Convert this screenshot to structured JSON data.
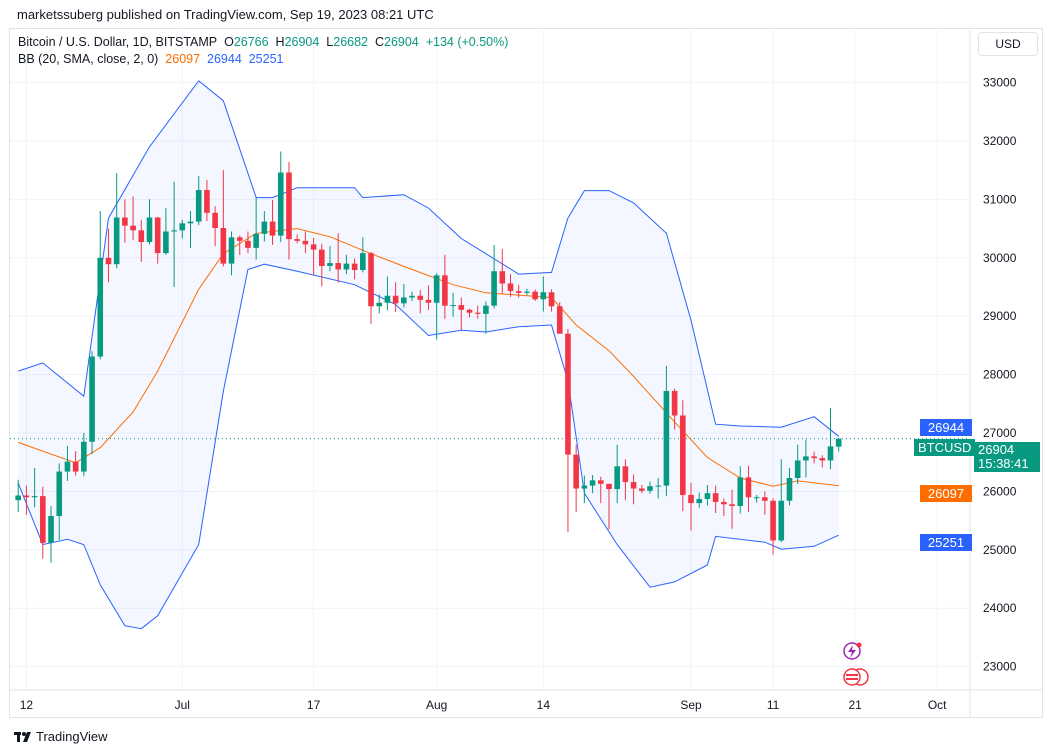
{
  "header": {
    "published": "marketssuberg published on TradingView.com, Sep 19, 2023 08:21 UTC"
  },
  "legend": {
    "symbol": "Bitcoin / U.S. Dollar, 1D, BITSTAMP",
    "o_label": "O",
    "o": "26766",
    "h_label": "H",
    "h": "26904",
    "l_label": "L",
    "l": "26682",
    "c_label": "C",
    "c": "26904",
    "change": "+134 (+0.50%)",
    "bb_label": "BB (20, SMA, close, 2, 0)",
    "bb_basis": "26097",
    "bb_upper": "26944",
    "bb_lower": "25251"
  },
  "currency_button": "USD",
  "price_tags": {
    "symbol": "BTCUSD",
    "last": "26904",
    "countdown": "15:38:41",
    "upper": "26944",
    "basis": "26097",
    "lower": "25251"
  },
  "footer": {
    "brand": "TradingView"
  },
  "colors": {
    "up": "#089981",
    "down": "#f23645",
    "bands": "#2962ff",
    "basis": "#ff6d00",
    "band_fill": "#2962ff0d",
    "grid": "#f0f3fa"
  },
  "chart_data": {
    "type": "candlestick",
    "ylim": [
      22600,
      33900
    ],
    "xlim": [
      "2023-06-10",
      "2023-10-05"
    ],
    "yticks": [
      23000,
      24000,
      25000,
      26000,
      27000,
      28000,
      29000,
      30000,
      31000,
      32000,
      33000
    ],
    "xticks": [
      {
        "date": "2023-06-12",
        "label": "12"
      },
      {
        "date": "2023-07-01",
        "label": "Jul"
      },
      {
        "date": "2023-07-17",
        "label": "17"
      },
      {
        "date": "2023-08-01",
        "label": "Aug"
      },
      {
        "date": "2023-08-14",
        "label": "14"
      },
      {
        "date": "2023-09-01",
        "label": "Sep"
      },
      {
        "date": "2023-09-11",
        "label": "11"
      },
      {
        "date": "2023-09-21",
        "label": "21"
      },
      {
        "date": "2023-10-01",
        "label": "Oct"
      }
    ],
    "grid": true,
    "last_price": 26904,
    "candles_start": "2023-06-11",
    "candles": [
      [
        25850,
        26200,
        25650,
        25930
      ],
      [
        25930,
        26100,
        25600,
        25900
      ],
      [
        25900,
        26400,
        25730,
        25920
      ],
      [
        25920,
        26080,
        24850,
        25120
      ],
      [
        25120,
        25750,
        24780,
        25580
      ],
      [
        25580,
        26480,
        25170,
        26340
      ],
      [
        26340,
        26780,
        26180,
        26510
      ],
      [
        26510,
        26690,
        26270,
        26340
      ],
      [
        26340,
        27000,
        26260,
        26850
      ],
      [
        26850,
        28400,
        26640,
        28310
      ],
      [
        28310,
        30800,
        28260,
        30000
      ],
      [
        30000,
        30500,
        29580,
        29890
      ],
      [
        29890,
        31450,
        29820,
        30690
      ],
      [
        30690,
        31000,
        30260,
        30550
      ],
      [
        30550,
        31050,
        30300,
        30470
      ],
      [
        30470,
        30650,
        29930,
        30270
      ],
      [
        30270,
        31000,
        30230,
        30690
      ],
      [
        30690,
        30700,
        29900,
        30080
      ],
      [
        30080,
        30850,
        30050,
        30450
      ],
      [
        30450,
        31300,
        29500,
        30470
      ],
      [
        30470,
        30650,
        30330,
        30590
      ],
      [
        30590,
        30800,
        30170,
        30620
      ],
      [
        30620,
        31400,
        30560,
        31160
      ],
      [
        31160,
        31330,
        30630,
        30770
      ],
      [
        30770,
        30880,
        30200,
        30510
      ],
      [
        30510,
        31500,
        29850,
        29900
      ],
      [
        29900,
        30450,
        29700,
        30350
      ],
      [
        30350,
        30380,
        30050,
        30290
      ],
      [
        30290,
        30450,
        30080,
        30170
      ],
      [
        30170,
        31050,
        29970,
        30410
      ],
      [
        30410,
        30800,
        30280,
        30620
      ],
      [
        30620,
        30990,
        30220,
        30380
      ],
      [
        30380,
        31820,
        30270,
        31460
      ],
      [
        31460,
        31640,
        29970,
        30320
      ],
      [
        30320,
        30400,
        30250,
        30290
      ],
      [
        30290,
        30450,
        30080,
        30230
      ],
      [
        30230,
        30340,
        29700,
        30140
      ],
      [
        30140,
        30240,
        29510,
        29860
      ],
      [
        29860,
        30200,
        29770,
        29910
      ],
      [
        29910,
        30420,
        29570,
        29800
      ],
      [
        29800,
        30050,
        29720,
        29900
      ],
      [
        29900,
        29990,
        29630,
        29790
      ],
      [
        29790,
        30350,
        29750,
        30080
      ],
      [
        30080,
        30100,
        28870,
        29170
      ],
      [
        29170,
        29370,
        29050,
        29230
      ],
      [
        29230,
        29680,
        29100,
        29350
      ],
      [
        29350,
        29580,
        29070,
        29220
      ],
      [
        29220,
        29550,
        29150,
        29320
      ],
      [
        29320,
        29420,
        29260,
        29350
      ],
      [
        29350,
        29450,
        29050,
        29280
      ],
      [
        29280,
        29530,
        29110,
        29230
      ],
      [
        29230,
        29740,
        28600,
        29700
      ],
      [
        29700,
        30050,
        28950,
        29180
      ],
      [
        29180,
        29400,
        28990,
        29190
      ],
      [
        29190,
        29320,
        28760,
        29110
      ],
      [
        29110,
        29130,
        28980,
        29060
      ],
      [
        29060,
        29180,
        28960,
        29040
      ],
      [
        29040,
        29250,
        28700,
        29180
      ],
      [
        29180,
        30220,
        29130,
        29770
      ],
      [
        29770,
        30150,
        29380,
        29560
      ],
      [
        29560,
        29720,
        29330,
        29430
      ],
      [
        29430,
        29540,
        29320,
        29400
      ],
      [
        29400,
        29470,
        29360,
        29420
      ],
      [
        29420,
        29460,
        29260,
        29290
      ],
      [
        29290,
        29680,
        29080,
        29410
      ],
      [
        29410,
        29460,
        29080,
        29170
      ],
      [
        29170,
        29240,
        28700,
        28700
      ],
      [
        28700,
        28780,
        25300,
        26630
      ],
      [
        26630,
        26800,
        25650,
        26050
      ],
      [
        26050,
        26270,
        25800,
        26100
      ],
      [
        26100,
        26280,
        25970,
        26190
      ],
      [
        26190,
        26250,
        25800,
        26130
      ],
      [
        26130,
        26130,
        25350,
        26040
      ],
      [
        26040,
        26800,
        25800,
        26430
      ],
      [
        26430,
        26550,
        25850,
        26160
      ],
      [
        26160,
        26290,
        25780,
        26050
      ],
      [
        26050,
        26110,
        25970,
        26010
      ],
      [
        26010,
        26170,
        25960,
        26090
      ],
      [
        26090,
        26230,
        25880,
        26100
      ],
      [
        26100,
        28150,
        25920,
        27720
      ],
      [
        27720,
        27760,
        27060,
        27300
      ],
      [
        27300,
        27560,
        25660,
        25940
      ],
      [
        25940,
        26150,
        25330,
        25800
      ],
      [
        25800,
        25980,
        25720,
        25870
      ],
      [
        25870,
        26110,
        25760,
        25970
      ],
      [
        25970,
        26100,
        25630,
        25820
      ],
      [
        25820,
        25880,
        25580,
        25780
      ],
      [
        25780,
        26030,
        25360,
        25750
      ],
      [
        25750,
        26430,
        25620,
        26240
      ],
      [
        26240,
        26440,
        25650,
        25900
      ],
      [
        25900,
        25940,
        25810,
        25900
      ],
      [
        25900,
        26000,
        25600,
        25840
      ],
      [
        25840,
        25880,
        24920,
        25160
      ],
      [
        25160,
        26550,
        25130,
        25840
      ],
      [
        25840,
        26400,
        25760,
        26230
      ],
      [
        26230,
        26800,
        26130,
        26530
      ],
      [
        26530,
        26890,
        26240,
        26600
      ],
      [
        26600,
        26680,
        26480,
        26570
      ],
      [
        26570,
        26620,
        26410,
        26530
      ],
      [
        26530,
        27430,
        26380,
        26770
      ],
      [
        26766,
        26904,
        26682,
        26904
      ]
    ],
    "bb_upper": [
      [
        "2023-06-11",
        28060
      ],
      [
        "2023-06-14",
        28200
      ],
      [
        "2023-06-19",
        27630
      ],
      [
        "2023-06-22",
        30680
      ],
      [
        "2023-06-27",
        31900
      ],
      [
        "2023-07-03",
        33030
      ],
      [
        "2023-07-06",
        32690
      ],
      [
        "2023-07-10",
        31030
      ],
      [
        "2023-07-12",
        31030
      ],
      [
        "2023-07-15",
        31200
      ],
      [
        "2023-07-22",
        31200
      ],
      [
        "2023-07-23",
        31030
      ],
      [
        "2023-07-28",
        31080
      ],
      [
        "2023-07-31",
        30850
      ],
      [
        "2023-08-04",
        30330
      ],
      [
        "2023-08-07",
        30070
      ],
      [
        "2023-08-11",
        29720
      ],
      [
        "2023-08-15",
        29750
      ],
      [
        "2023-08-17",
        30680
      ],
      [
        "2023-08-19",
        31150
      ],
      [
        "2023-08-22",
        31150
      ],
      [
        "2023-08-25",
        30940
      ],
      [
        "2023-08-29",
        30420
      ],
      [
        "2023-09-01",
        28930
      ],
      [
        "2023-09-04",
        27150
      ],
      [
        "2023-09-07",
        27120
      ],
      [
        "2023-09-12",
        27100
      ],
      [
        "2023-09-16",
        27280
      ],
      [
        "2023-09-19",
        26944
      ]
    ],
    "bb_basis": [
      [
        "2023-06-11",
        26840
      ],
      [
        "2023-06-18",
        26490
      ],
      [
        "2023-06-21",
        26750
      ],
      [
        "2023-06-25",
        27360
      ],
      [
        "2023-06-28",
        28060
      ],
      [
        "2023-07-03",
        29460
      ],
      [
        "2023-07-06",
        30070
      ],
      [
        "2023-07-10",
        30420
      ],
      [
        "2023-07-15",
        30500
      ],
      [
        "2023-07-19",
        30360
      ],
      [
        "2023-07-24",
        30070
      ],
      [
        "2023-07-29",
        29800
      ],
      [
        "2023-08-03",
        29540
      ],
      [
        "2023-08-07",
        29400
      ],
      [
        "2023-08-15",
        29320
      ],
      [
        "2023-08-18",
        28850
      ],
      [
        "2023-08-22",
        28410
      ],
      [
        "2023-08-25",
        27970
      ],
      [
        "2023-08-30",
        27190
      ],
      [
        "2023-09-03",
        26580
      ],
      [
        "2023-09-07",
        26230
      ],
      [
        "2023-09-11",
        26090
      ],
      [
        "2023-09-14",
        26180
      ],
      [
        "2023-09-19",
        26097
      ]
    ],
    "bb_lower": [
      [
        "2023-06-11",
        26140
      ],
      [
        "2023-06-14",
        25090
      ],
      [
        "2023-06-17",
        25180
      ],
      [
        "2023-06-19",
        25090
      ],
      [
        "2023-06-21",
        24400
      ],
      [
        "2023-06-24",
        23700
      ],
      [
        "2023-06-26",
        23650
      ],
      [
        "2023-06-28",
        23870
      ],
      [
        "2023-07-03",
        25090
      ],
      [
        "2023-07-06",
        27710
      ],
      [
        "2023-07-09",
        29800
      ],
      [
        "2023-07-11",
        29890
      ],
      [
        "2023-07-15",
        29770
      ],
      [
        "2023-07-22",
        29540
      ],
      [
        "2023-07-27",
        29200
      ],
      [
        "2023-07-31",
        28670
      ],
      [
        "2023-08-04",
        28760
      ],
      [
        "2023-08-07",
        28730
      ],
      [
        "2023-08-11",
        28820
      ],
      [
        "2023-08-15",
        28850
      ],
      [
        "2023-08-17",
        27890
      ],
      [
        "2023-08-19",
        25970
      ],
      [
        "2023-08-23",
        25090
      ],
      [
        "2023-08-27",
        24360
      ],
      [
        "2023-08-30",
        24450
      ],
      [
        "2023-09-03",
        24740
      ],
      [
        "2023-09-04",
        25230
      ],
      [
        "2023-09-10",
        25130
      ],
      [
        "2023-09-12",
        25010
      ],
      [
        "2023-09-16",
        25060
      ],
      [
        "2023-09-19",
        25251
      ]
    ]
  }
}
